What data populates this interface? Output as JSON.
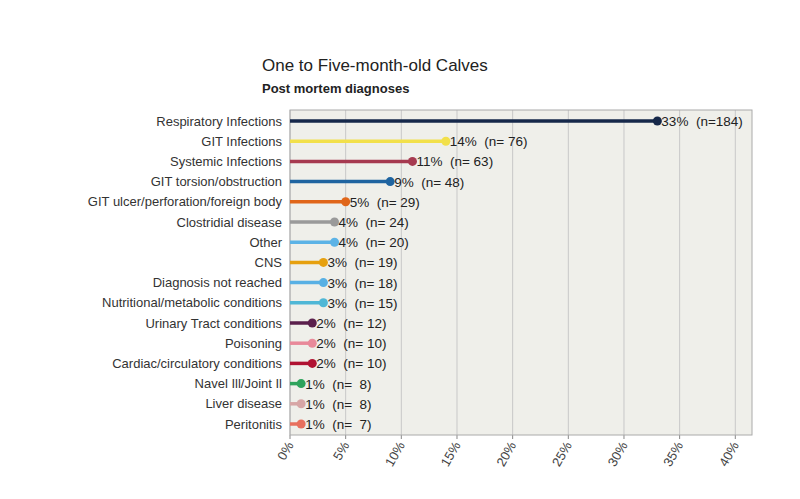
{
  "chart_data": {
    "type": "bar",
    "orientation": "horizontal",
    "marker": "circle",
    "title": "One to Five-month-old Calves",
    "subtitle": "Post mortem diagnoses",
    "categories": [
      "Respiratory Infections",
      "GIT Infections",
      "Systemic Infections",
      "GIT torsion/obstruction",
      "GIT ulcer/perforation/foreign body",
      "Clostridial disease",
      "Other",
      "CNS",
      "Diagnosis not reached",
      "Nutritional/metabolic conditions",
      "Urinary Tract conditions",
      "Poisoning",
      "Cardiac/circulatory conditions",
      "Navel Ill/Joint Il",
      "Liver disease",
      "Peritonitis"
    ],
    "values": [
      33,
      14,
      11,
      9,
      5,
      4,
      4,
      3,
      3,
      3,
      2,
      2,
      2,
      1,
      1,
      1
    ],
    "value_labels": [
      "33%  (n=184)",
      "14%  (n= 76)",
      "11%  (n= 63)",
      "9%  (n= 48)",
      "5%  (n= 29)",
      "4%  (n= 24)",
      "4%  (n= 20)",
      "3%  (n= 19)",
      "3%  (n= 18)",
      "3%  (n= 15)",
      "2%  (n= 12)",
      "2%  (n= 10)",
      "2%  (n= 10)",
      "1%  (n=  8)",
      "1%  (n=  8)",
      "1%  (n=  7)"
    ],
    "colors": [
      "#16284a",
      "#f2e04a",
      "#a63a50",
      "#1f64a0",
      "#e0661a",
      "#9a9a9a",
      "#5cb3e6",
      "#e6a00f",
      "#58b0e4",
      "#4fb7d6",
      "#5a1f4c",
      "#e8899a",
      "#b01232",
      "#2ea35c",
      "#d7a6a6",
      "#e8705e"
    ],
    "xlim": [
      0,
      41.5
    ],
    "xticks": [
      {
        "value": 0,
        "label": "0%"
      },
      {
        "value": 5,
        "label": "5%"
      },
      {
        "value": 10,
        "label": "10%"
      },
      {
        "value": 15,
        "label": "15%"
      },
      {
        "value": 20,
        "label": "20%"
      },
      {
        "value": 25,
        "label": "25%"
      },
      {
        "value": 30,
        "label": "30%"
      },
      {
        "value": 35,
        "label": "35%"
      },
      {
        "value": 40,
        "label": "40%"
      }
    ],
    "grid": true,
    "data_labels": true
  }
}
